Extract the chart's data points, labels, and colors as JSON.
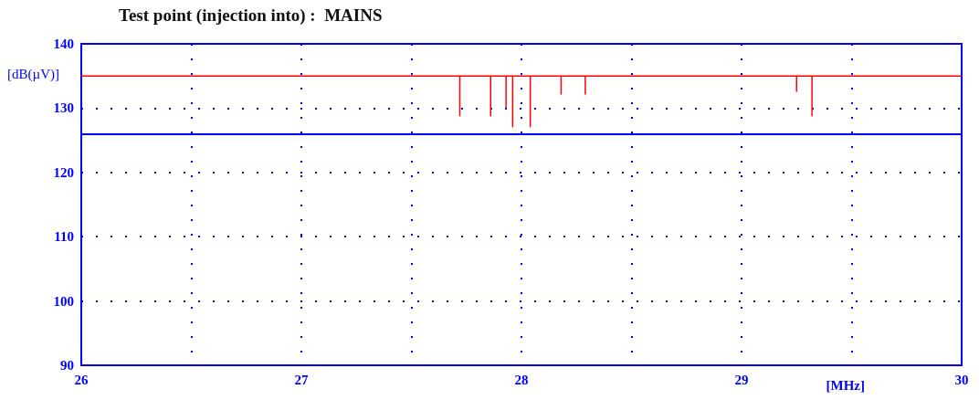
{
  "chart_data": {
    "type": "line",
    "title": "Test point (injection into) :  MAINS",
    "xlabel": "[MHz]",
    "ylabel": "[dB(µV)]",
    "series": [
      {
        "color": "#ff0000",
        "x": [
          26,
          27.72,
          27.72,
          27.72,
          27.86,
          27.86,
          27.86,
          27.93,
          27.93,
          27.93,
          27.96,
          27.96,
          27.96,
          28.04,
          28.04,
          28.04,
          28.18,
          28.18,
          28.18,
          28.29,
          28.29,
          28.29,
          29.25,
          29.25,
          29.25,
          29.32,
          29.32,
          29.32,
          30
        ],
        "values": [
          135,
          135,
          128.8,
          135,
          135,
          128.8,
          135,
          135,
          130.1,
          135,
          135,
          127.1,
          135,
          135,
          127.1,
          135,
          135,
          132.2,
          135,
          135,
          132.2,
          135,
          135,
          132.6,
          135,
          135,
          128.8,
          135,
          135
        ]
      }
    ],
    "ref_lines": [
      {
        "axis": "y",
        "value": 126,
        "color": "#0000ff"
      }
    ],
    "xlim": [
      26,
      30
    ],
    "xticks": [
      26,
      {
        "value": 26.5,
        "label": null
      },
      27,
      {
        "value": 27.5,
        "label": null
      },
      28,
      {
        "value": 28.5,
        "label": null
      },
      29,
      {
        "value": 29.5,
        "label": null
      },
      30
    ],
    "ylim": [
      90,
      140
    ],
    "yticks": [
      90,
      100,
      110,
      120,
      130,
      140
    ],
    "grid": true,
    "marker": "none",
    "line_style": "solid"
  }
}
